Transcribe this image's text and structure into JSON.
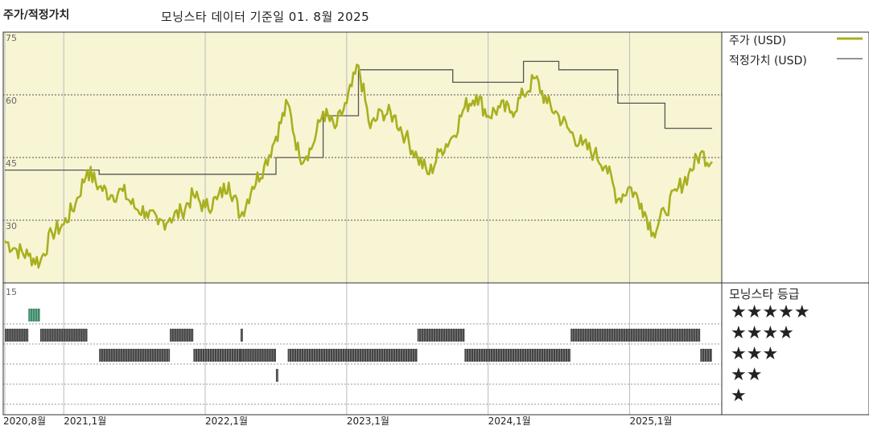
{
  "header": {
    "left_title": "주가/적정가치",
    "center_title": "모닝스타 데이터 기준일 01. 8월 2025"
  },
  "legend": {
    "price_label": "주가 (USD)",
    "fair_value_label": "적정가치 (USD)",
    "rating_title": "모닝스타 등급",
    "stars": [
      "★★★★★",
      "★★★★",
      "★★★",
      "★★",
      "★"
    ]
  },
  "colors": {
    "price": "#a8b020",
    "fair_value": "#555555",
    "panel_bg": "#f8f5d4",
    "rating_bar": "#444444",
    "rating_highlight": "#3d8c6a"
  },
  "chart_data": [
    {
      "type": "line",
      "ylim": [
        15,
        75
      ],
      "yticks": [
        "75",
        "60",
        "45",
        "30"
      ],
      "xlim": [
        "2020-08",
        "2025-08"
      ],
      "xticks": [
        {
          "date": "2020-08",
          "label": "2020,8월"
        },
        {
          "date": "2021-01",
          "label": "2021,1월"
        },
        {
          "date": "2022-01",
          "label": "2022,1월"
        },
        {
          "date": "2023-01",
          "label": "2023,1월"
        },
        {
          "date": "2024-01",
          "label": "2024,1월"
        },
        {
          "date": "2025-01",
          "label": "2025,1월"
        }
      ],
      "series": [
        {
          "name": "주가 (USD)",
          "step": false,
          "points": [
            [
              "2020-08",
              25
            ],
            [
              "2020-09",
              23
            ],
            [
              "2020-10",
              21.5
            ],
            [
              "2020-11",
              20
            ],
            [
              "2020-12",
              27
            ],
            [
              "2021-01",
              29
            ],
            [
              "2021-02",
              34
            ],
            [
              "2021-03",
              42
            ],
            [
              "2021-04",
              38
            ],
            [
              "2021-05",
              36
            ],
            [
              "2021-06",
              37
            ],
            [
              "2021-07",
              33
            ],
            [
              "2021-08",
              32
            ],
            [
              "2021-09",
              29
            ],
            [
              "2021-10",
              30.5
            ],
            [
              "2021-11",
              32
            ],
            [
              "2021-12",
              36
            ],
            [
              "2022-01",
              33
            ],
            [
              "2022-02",
              35
            ],
            [
              "2022-03",
              39
            ],
            [
              "2022-04",
              31
            ],
            [
              "2022-05",
              38
            ],
            [
              "2022-06",
              43
            ],
            [
              "2022-07",
              50
            ],
            [
              "2022-08",
              58
            ],
            [
              "2022-09",
              45
            ],
            [
              "2022-10",
              47
            ],
            [
              "2022-11",
              56
            ],
            [
              "2022-12",
              52
            ],
            [
              "2023-01",
              58
            ],
            [
              "2023-02",
              67
            ],
            [
              "2023-03",
              52
            ],
            [
              "2023-04",
              56
            ],
            [
              "2023-05",
              55
            ],
            [
              "2023-06",
              50
            ],
            [
              "2023-07",
              45
            ],
            [
              "2023-08",
              41
            ],
            [
              "2023-09",
              47
            ],
            [
              "2023-10",
              50
            ],
            [
              "2023-11",
              57
            ],
            [
              "2023-12",
              60
            ],
            [
              "2024-01",
              55
            ],
            [
              "2024-02",
              57
            ],
            [
              "2024-03",
              56
            ],
            [
              "2024-04",
              60
            ],
            [
              "2024-05",
              64
            ],
            [
              "2024-06",
              58
            ],
            [
              "2024-07",
              55
            ],
            [
              "2024-08",
              51
            ],
            [
              "2024-09",
              48
            ],
            [
              "2024-10",
              46
            ],
            [
              "2024-11",
              43
            ],
            [
              "2024-12",
              35
            ],
            [
              "2025-01",
              38
            ],
            [
              "2025-02",
              34
            ],
            [
              "2025-03",
              27
            ],
            [
              "2025-04",
              32
            ],
            [
              "2025-05",
              37
            ],
            [
              "2025-06",
              41
            ],
            [
              "2025-07",
              46
            ],
            [
              "2025-08",
              44
            ]
          ]
        },
        {
          "name": "적정가치 (USD)",
          "step": true,
          "points": [
            [
              "2020-08",
              42
            ],
            [
              "2021-03",
              42
            ],
            [
              "2021-04",
              41
            ],
            [
              "2022-06",
              41
            ],
            [
              "2022-07",
              45
            ],
            [
              "2022-11",
              45
            ],
            [
              "2022-11",
              55
            ],
            [
              "2023-01",
              55
            ],
            [
              "2023-02",
              66
            ],
            [
              "2023-10",
              66
            ],
            [
              "2023-10",
              63
            ],
            [
              "2024-03",
              63
            ],
            [
              "2024-04",
              68
            ],
            [
              "2024-06",
              68
            ],
            [
              "2024-07",
              66
            ],
            [
              "2024-11",
              66
            ],
            [
              "2024-12",
              58
            ],
            [
              "2025-03",
              58
            ],
            [
              "2025-04",
              52
            ],
            [
              "2025-08",
              52
            ]
          ]
        }
      ]
    },
    {
      "type": "heatmap",
      "ylabel_top": "15",
      "rating_levels": [
        5,
        4,
        3,
        2,
        1
      ],
      "segments": [
        {
          "stars": 5,
          "start": "2020-10",
          "end": "2020-11"
        },
        {
          "stars": 4,
          "start": "2020-08",
          "end": "2020-10"
        },
        {
          "stars": 4,
          "start": "2020-11",
          "end": "2021-03"
        },
        {
          "stars": 3,
          "start": "2021-04",
          "end": "2021-10"
        },
        {
          "stars": 4,
          "start": "2021-10",
          "end": "2021-12"
        },
        {
          "stars": 3,
          "start": "2021-12",
          "end": "2022-04"
        },
        {
          "stars": 4,
          "start": "2022-04",
          "end": "2022-04"
        },
        {
          "stars": 3,
          "start": "2022-04",
          "end": "2022-07"
        },
        {
          "stars": 2,
          "start": "2022-07",
          "end": "2022-07"
        },
        {
          "stars": 3,
          "start": "2022-08",
          "end": "2023-07"
        },
        {
          "stars": 4,
          "start": "2023-07",
          "end": "2023-11"
        },
        {
          "stars": 3,
          "start": "2023-11",
          "end": "2024-08"
        },
        {
          "stars": 4,
          "start": "2024-08",
          "end": "2025-07"
        },
        {
          "stars": 3,
          "start": "2025-07",
          "end": "2025-08"
        }
      ]
    }
  ]
}
